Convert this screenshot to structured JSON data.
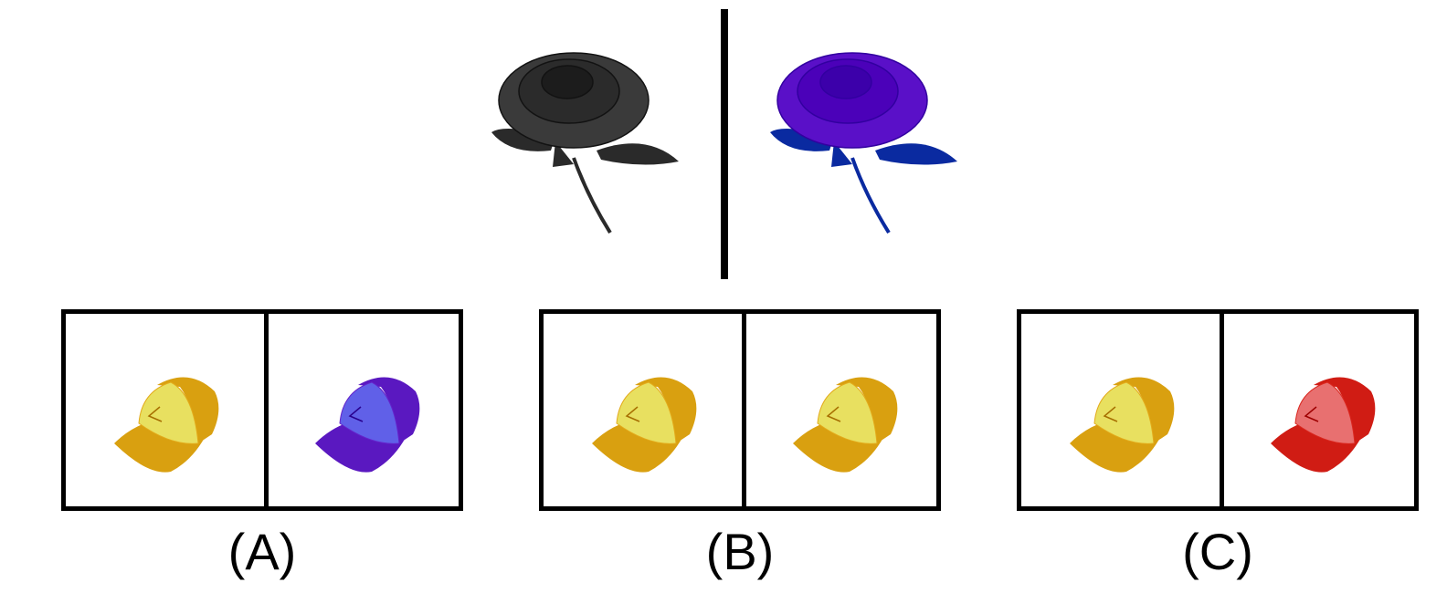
{
  "example": {
    "left_item": {
      "object": "rose",
      "color": "#3a3a3a",
      "leaf_color": "#2a2a2a",
      "icon": "rose-icon"
    },
    "right_item": {
      "object": "rose",
      "color": "#5a10c8",
      "leaf_color": "#0a2aa0",
      "icon": "rose-icon"
    }
  },
  "options": [
    {
      "label": "(A)",
      "left_cap": {
        "crown": "#e8e060",
        "brim": "#d9a010"
      },
      "right_cap": {
        "crown": "#6060e8",
        "brim": "#5a18c0"
      }
    },
    {
      "label": "(B)",
      "left_cap": {
        "crown": "#e8e060",
        "brim": "#d9a010"
      },
      "right_cap": {
        "crown": "#e8e060",
        "brim": "#d9a010"
      }
    },
    {
      "label": "(C)",
      "left_cap": {
        "crown": "#e8e060",
        "brim": "#d9a010"
      },
      "right_cap": {
        "crown": "#e87070",
        "brim": "#d01c14"
      }
    }
  ]
}
